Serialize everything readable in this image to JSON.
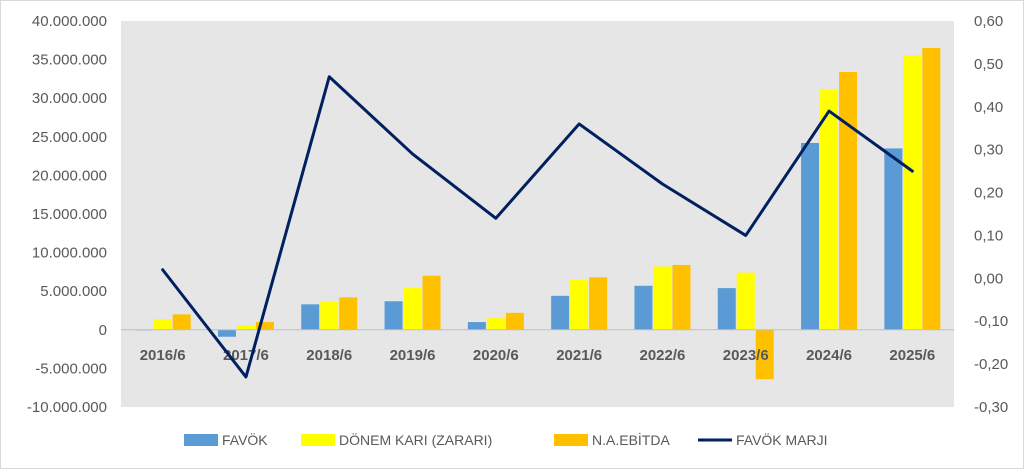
{
  "chart_data": {
    "type": "bar",
    "title": "",
    "xlabel": "",
    "ylabel": "",
    "categories": [
      "2016/6",
      "2017/6",
      "2018/6",
      "2019/6",
      "2020/6",
      "2021/6",
      "2022/6",
      "2023/6",
      "2024/6",
      "2025/6"
    ],
    "series": [
      {
        "name": "FAVÖK",
        "type": "bar",
        "axis": "left",
        "color": "#5b9bd5",
        "values": [
          0,
          -900000,
          3300000,
          3700000,
          1000000,
          4400000,
          5700000,
          5400000,
          24200000,
          23500000
        ]
      },
      {
        "name": "DÖNEM KARI (ZARARI)",
        "type": "bar",
        "axis": "left",
        "color": "#ffff00",
        "values": [
          1400000,
          600000,
          3600000,
          5400000,
          1500000,
          6500000,
          8200000,
          7400000,
          31200000,
          35600000
        ]
      },
      {
        "name": "N.A.EBİTDA",
        "type": "bar",
        "axis": "left",
        "color": "#ffc000",
        "values": [
          2000000,
          1000000,
          4200000,
          7000000,
          2200000,
          6800000,
          8400000,
          -6400000,
          33400000,
          36500000
        ]
      },
      {
        "name": "FAVÖK MARJI",
        "type": "line",
        "axis": "right",
        "color": "#002060",
        "values": [
          0.02,
          -0.23,
          0.47,
          0.29,
          0.14,
          0.36,
          0.22,
          0.1,
          0.39,
          0.25
        ]
      }
    ],
    "ylim_left": [
      -10000000,
      40000000
    ],
    "ytick_step_left": 5000000,
    "ylim_right": [
      -0.3,
      0.6
    ],
    "ytick_step_right": 0.1,
    "yticks_left": [
      "40.000.000",
      "35.000.000",
      "30.000.000",
      "25.000.000",
      "20.000.000",
      "15.000.000",
      "10.000.000",
      "5.000.000",
      "0",
      "-5.000.000",
      "-10.000.000"
    ],
    "yticks_right": [
      "0,60",
      "0,50",
      "0,40",
      "0,30",
      "0,20",
      "0,10",
      "0,00",
      "-0,10",
      "-0,20",
      "-0,30"
    ],
    "grid": false,
    "plot_background": "#e7e6e6",
    "legend_position": "bottom"
  }
}
